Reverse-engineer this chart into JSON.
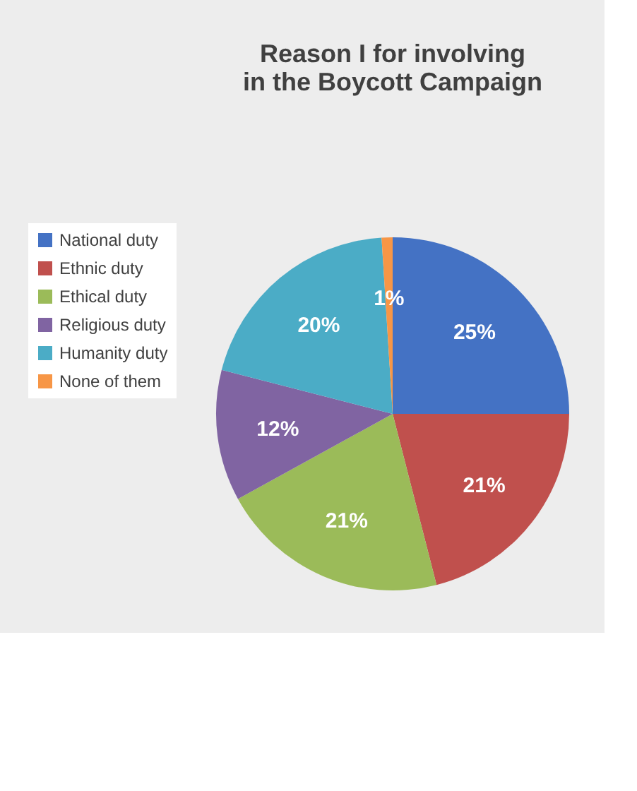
{
  "chart_data": {
    "type": "pie",
    "title": "Reason I for involving in the Boycott Campaign",
    "categories": [
      "National duty",
      "Ethnic duty",
      "Ethical duty",
      "Religious duty",
      "Humanity duty",
      "None of them"
    ],
    "values": [
      25,
      21,
      21,
      12,
      20,
      1
    ],
    "value_labels": [
      "25%",
      "21%",
      "21%",
      "12%",
      "20%",
      "1%"
    ],
    "colors": [
      "#4472c4",
      "#c0504d",
      "#9bbb59",
      "#8064a2",
      "#4bacc6",
      "#f79646"
    ],
    "legend": "left"
  }
}
